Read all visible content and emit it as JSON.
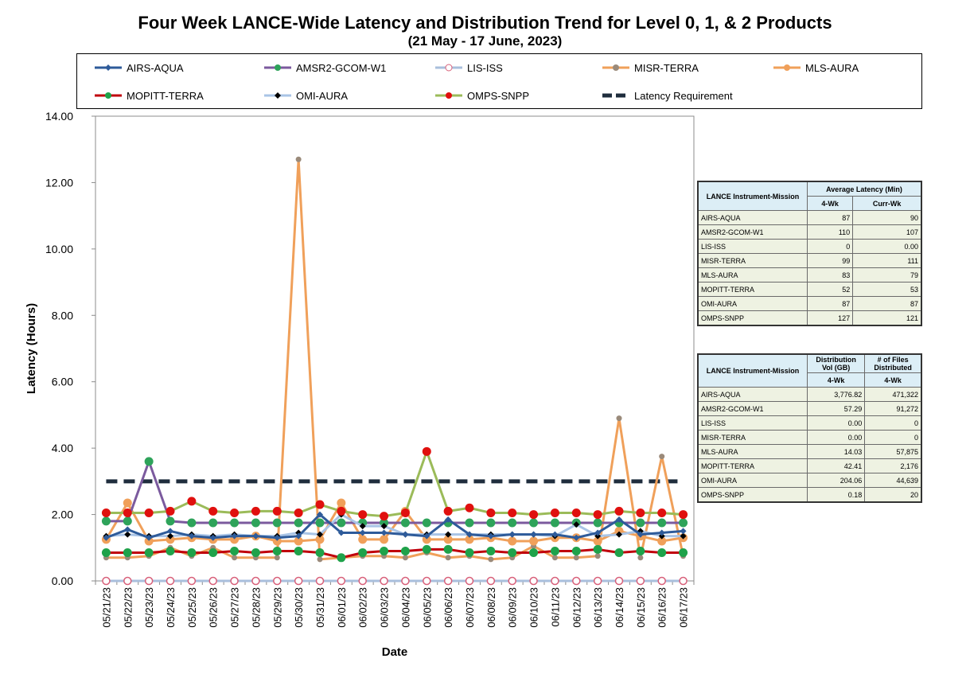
{
  "title": "Four Week LANCE-Wide Latency and Distribution Trend for Level 0, 1, & 2 Products",
  "subtitle": "(21 May    -  17 June, 2023)",
  "chart_data": {
    "type": "line",
    "xlabel": "Date",
    "ylabel": "Latency (Hours)",
    "ylim": [
      0,
      14
    ],
    "yticks": [
      "0.00",
      "2.00",
      "4.00",
      "6.00",
      "8.00",
      "10.00",
      "12.00",
      "14.00"
    ],
    "categories": [
      "05/21/23",
      "05/22/23",
      "05/23/23",
      "05/24/23",
      "05/25/23",
      "05/26/23",
      "05/27/23",
      "05/28/23",
      "05/29/23",
      "05/30/23",
      "05/31/23",
      "06/01/23",
      "06/02/23",
      "06/03/23",
      "06/04/23",
      "06/05/23",
      "06/06/23",
      "06/07/23",
      "06/08/23",
      "06/09/23",
      "06/10/23",
      "06/11/23",
      "06/12/23",
      "06/13/23",
      "06/14/23",
      "06/15/23",
      "06/16/23",
      "06/17/23"
    ],
    "legend_position": "top",
    "grid": false,
    "series": [
      {
        "name": "AIRS-AQUA",
        "color": "#2e5b9a",
        "marker": "diamond",
        "values": [
          1.3,
          1.55,
          1.3,
          1.5,
          1.35,
          1.3,
          1.35,
          1.35,
          1.3,
          1.35,
          2.0,
          1.45,
          1.45,
          1.45,
          1.4,
          1.35,
          1.85,
          1.4,
          1.35,
          1.4,
          1.4,
          1.4,
          1.3,
          1.45,
          1.85,
          1.4,
          1.45,
          1.5
        ]
      },
      {
        "name": "AMSR2-GCOM-W1",
        "color": "#7b5a9e",
        "marker": "circle",
        "values": [
          1.8,
          1.8,
          3.6,
          1.8,
          1.75,
          1.75,
          1.75,
          1.75,
          1.75,
          1.75,
          1.75,
          1.75,
          1.75,
          1.75,
          1.75,
          1.75,
          1.75,
          1.75,
          1.75,
          1.75,
          1.75,
          1.75,
          1.75,
          1.75,
          1.75,
          1.75,
          1.75,
          1.75
        ]
      },
      {
        "name": "LIS-ISS",
        "color": "#a9bfdc",
        "marker": "open-circle",
        "values": [
          0,
          0,
          0,
          0,
          0,
          0,
          0,
          0,
          0,
          0,
          0,
          0,
          0,
          0,
          0,
          0,
          0,
          0,
          0,
          0,
          0,
          0,
          0,
          0,
          0,
          0,
          0,
          0
        ]
      },
      {
        "name": "MISR-TERRA",
        "color": "#f0a05a",
        "marker": "circle",
        "values": [
          0.7,
          0.7,
          0.75,
          1.0,
          0.75,
          1.0,
          0.7,
          0.7,
          0.7,
          12.7,
          0.65,
          0.7,
          0.75,
          0.75,
          0.7,
          0.85,
          0.7,
          0.75,
          0.65,
          0.7,
          1.05,
          0.7,
          0.7,
          0.75,
          4.9,
          0.7,
          3.75,
          0.75
        ]
      },
      {
        "name": "MLS-AURA",
        "color": "#f0a05a",
        "marker": "circle",
        "values": [
          1.25,
          2.35,
          1.2,
          1.25,
          1.3,
          1.25,
          1.25,
          1.35,
          1.2,
          1.2,
          1.25,
          2.35,
          1.25,
          1.25,
          2.1,
          1.25,
          1.25,
          1.25,
          1.3,
          1.2,
          1.2,
          1.3,
          1.3,
          1.2,
          1.5,
          1.35,
          1.2,
          1.3
        ]
      },
      {
        "name": "MOPITT-TERRA",
        "color": "#c0000c",
        "marker": "circle",
        "values": [
          0.85,
          0.85,
          0.85,
          0.9,
          0.85,
          0.85,
          0.9,
          0.85,
          0.9,
          0.9,
          0.85,
          0.7,
          0.85,
          0.9,
          0.9,
          0.95,
          0.95,
          0.85,
          0.9,
          0.85,
          0.85,
          0.9,
          0.9,
          0.95,
          0.85,
          0.9,
          0.85,
          0.85
        ]
      },
      {
        "name": "OMI-AURA",
        "color": "#a9c4e6",
        "marker": "diamond-small",
        "values": [
          1.35,
          1.4,
          1.35,
          1.35,
          1.4,
          1.35,
          1.4,
          1.35,
          1.35,
          1.45,
          1.4,
          2.0,
          1.65,
          1.65,
          1.4,
          1.4,
          1.4,
          1.4,
          1.4,
          1.4,
          1.4,
          1.35,
          1.7,
          1.35,
          1.4,
          1.5,
          1.35,
          1.35
        ]
      },
      {
        "name": "OMPS-SNPP",
        "color": "#9bbb59",
        "marker": "circle",
        "values": [
          2.05,
          2.05,
          2.05,
          2.1,
          2.4,
          2.1,
          2.05,
          2.1,
          2.1,
          2.05,
          2.3,
          2.1,
          2.0,
          1.95,
          2.05,
          3.9,
          2.1,
          2.2,
          2.05,
          2.05,
          2.0,
          2.05,
          2.05,
          2.0,
          2.1,
          2.05,
          2.05,
          2.0
        ]
      },
      {
        "name": "Latency Requirement",
        "color": "#1f2d3d",
        "marker": "dash",
        "values": [
          3,
          3,
          3,
          3,
          3,
          3,
          3,
          3,
          3,
          3,
          3,
          3,
          3,
          3,
          3,
          3,
          3,
          3,
          3,
          3,
          3,
          3,
          3,
          3,
          3,
          3,
          3,
          3
        ]
      }
    ]
  },
  "table1": {
    "head_instrument": "LANCE Instrument-Mission",
    "head_group": "Average Latency (Min)",
    "sub1": "4-Wk",
    "sub2": "Curr-Wk",
    "rows": [
      {
        "name": "AIRS-AQUA",
        "a": "87",
        "b": "90"
      },
      {
        "name": "AMSR2-GCOM-W1",
        "a": "110",
        "b": "107"
      },
      {
        "name": "LIS-ISS",
        "a": "0",
        "b": "0.00"
      },
      {
        "name": "MISR-TERRA",
        "a": "99",
        "b": "111"
      },
      {
        "name": "MLS-AURA",
        "a": "83",
        "b": "79"
      },
      {
        "name": "MOPITT-TERRA",
        "a": "52",
        "b": "53"
      },
      {
        "name": "OMI-AURA",
        "a": "87",
        "b": "87"
      },
      {
        "name": "OMPS-SNPP",
        "a": "127",
        "b": "121"
      }
    ]
  },
  "table2": {
    "head_instrument": "LANCE Instrument-Mission",
    "head_a": "Distribution Vol (GB)",
    "head_b": "# of Files Distributed",
    "sub1": "4-Wk",
    "sub2": "4-Wk",
    "rows": [
      {
        "name": "AIRS-AQUA",
        "a": "3,776.82",
        "b": "471,322"
      },
      {
        "name": "AMSR2-GCOM-W1",
        "a": "57.29",
        "b": "91,272"
      },
      {
        "name": "LIS-ISS",
        "a": "0.00",
        "b": "0"
      },
      {
        "name": "MISR-TERRA",
        "a": "0.00",
        "b": "0"
      },
      {
        "name": "MLS-AURA",
        "a": "14.03",
        "b": "57,875"
      },
      {
        "name": "MOPITT-TERRA",
        "a": "42.41",
        "b": "2,176"
      },
      {
        "name": "OMI-AURA",
        "a": "204.06",
        "b": "44,639"
      },
      {
        "name": "OMPS-SNPP",
        "a": "0.18",
        "b": "20"
      }
    ]
  }
}
